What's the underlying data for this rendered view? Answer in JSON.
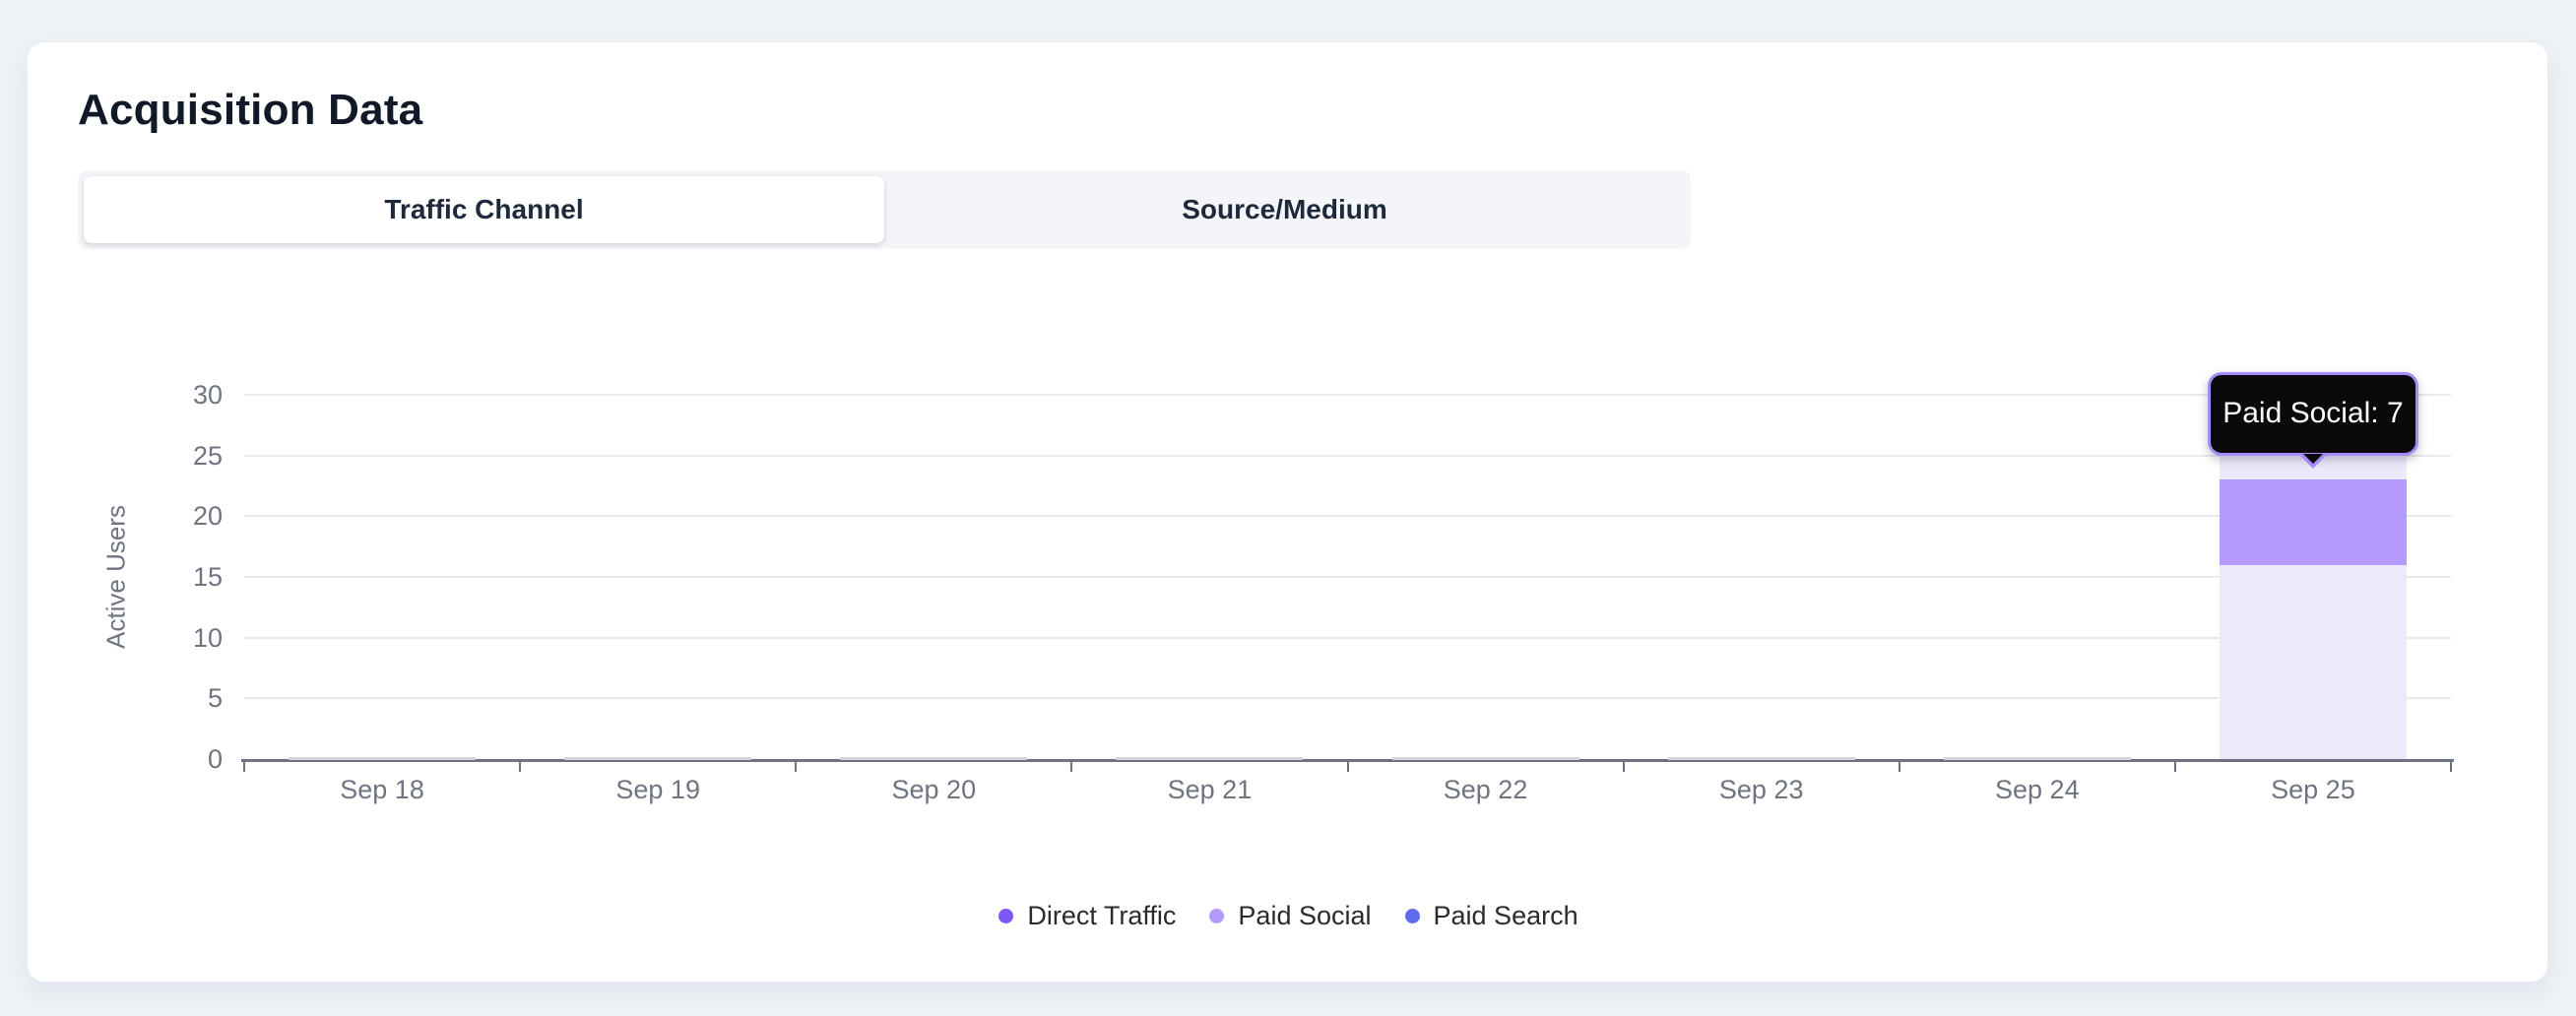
{
  "page": {
    "title": "Acquisition Data"
  },
  "tabs": [
    {
      "label": "Traffic Channel",
      "active": true
    },
    {
      "label": "Source/Medium",
      "active": false
    }
  ],
  "tooltip": {
    "series": "Paid Social",
    "value": 7,
    "text": "Paid Social: 7"
  },
  "colors": {
    "page_bg": "#eef2f7",
    "card_bg": "#ffffff",
    "dimmed_fill": "#ece9fa",
    "trace_fill": "#d6d4e0",
    "axis_line": "#6f7280",
    "gridline": "#e8e9ee",
    "tick_text": "#6e7480",
    "tooltip_bg": "#0a0a0d",
    "tooltip_border": "#a78bfa"
  },
  "chart_data": {
    "type": "bar",
    "stacked": true,
    "title": "",
    "xlabel": "",
    "ylabel": "Active Users",
    "categories": [
      "Sep 18",
      "Sep 19",
      "Sep 20",
      "Sep 21",
      "Sep 22",
      "Sep 23",
      "Sep 24",
      "Sep 25"
    ],
    "y_ticks": [
      0,
      5,
      10,
      15,
      20,
      25,
      30
    ],
    "ylim": [
      0,
      30
    ],
    "grid": true,
    "legend_position": "bottom",
    "hovered_category": "Sep 25",
    "hovered_series": "Paid Social",
    "series": [
      {
        "name": "Direct Traffic",
        "color": "#7e57f2",
        "state": "dimmed",
        "values": [
          0,
          0,
          0,
          0,
          0,
          0,
          0,
          16
        ]
      },
      {
        "name": "Paid Social",
        "color": "#b39afc",
        "state": "highlighted",
        "values": [
          0,
          0,
          0,
          0,
          0,
          0,
          0,
          7
        ]
      },
      {
        "name": "Paid Search",
        "color": "#5f6cf2",
        "state": "dimmed",
        "values": [
          0,
          0,
          0,
          0,
          0,
          0,
          0,
          2
        ]
      }
    ]
  }
}
